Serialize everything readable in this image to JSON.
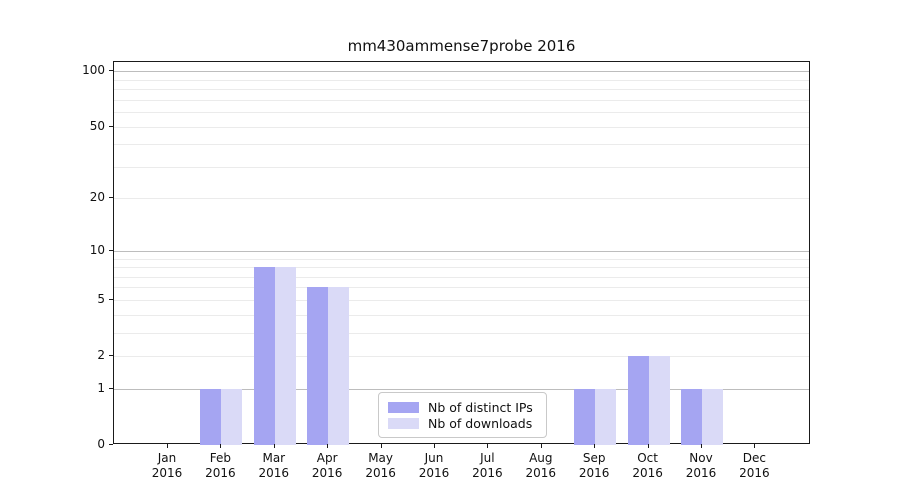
{
  "title": "mm430ammense7probe 2016",
  "legend": {
    "items": [
      {
        "label": "Nb of distinct IPs",
        "color": "#a5a5f2"
      },
      {
        "label": "Nb of downloads",
        "color": "#dadaf7"
      }
    ]
  },
  "chart_data": {
    "type": "bar",
    "title": "mm430ammense7probe 2016",
    "categories": [
      "Jan",
      "Feb",
      "Mar",
      "Apr",
      "May",
      "Jun",
      "Jul",
      "Aug",
      "Sep",
      "Oct",
      "Nov",
      "Dec"
    ],
    "x_tick_second_line": "2016",
    "series": [
      {
        "name": "Nb of distinct IPs",
        "color": "#a5a5f2",
        "values": [
          0,
          1,
          8,
          6,
          0,
          0,
          0,
          0,
          1,
          2,
          1,
          0
        ]
      },
      {
        "name": "Nb of downloads",
        "color": "#dadaf7",
        "values": [
          0,
          1,
          8,
          6,
          0,
          0,
          0,
          0,
          1,
          2,
          1,
          0
        ]
      }
    ],
    "yscale": "log1p",
    "ylim": [
      0,
      112
    ],
    "yticks": [
      0,
      1,
      2,
      5,
      10,
      20,
      50,
      100
    ],
    "major_gridlines": [
      1,
      10,
      100
    ],
    "minor_gridlines": [
      2,
      3,
      4,
      5,
      6,
      7,
      8,
      9,
      20,
      30,
      40,
      50,
      60,
      70,
      80,
      90
    ],
    "grid": true,
    "legend_position": "inside bottom-center",
    "xlabel": "",
    "ylabel": ""
  }
}
